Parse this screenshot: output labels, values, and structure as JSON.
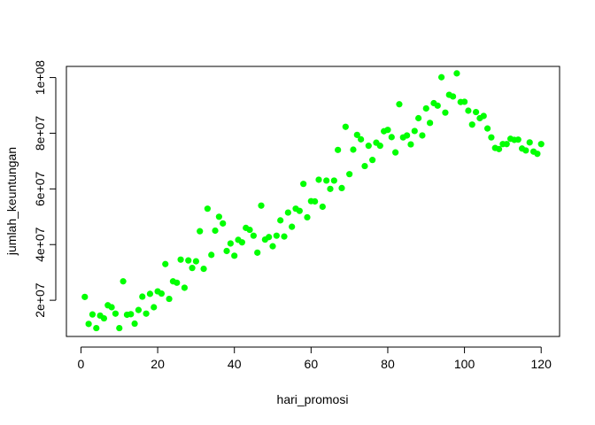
{
  "chart_data": {
    "type": "scatter",
    "title": "",
    "xlabel": "hari_promosi",
    "ylabel": "jumlah_keuntungan",
    "xlim": [
      -3.8,
      124.8
    ],
    "ylim": [
      7000000,
      104000000
    ],
    "xticks": [
      0,
      20,
      40,
      60,
      80,
      100,
      120
    ],
    "xtick_labels": [
      "0",
      "20",
      "40",
      "60",
      "80",
      "100",
      "120"
    ],
    "yticks": [
      20000000,
      40000000,
      60000000,
      80000000,
      100000000
    ],
    "ytick_labels": [
      "2e+07",
      "4e+07",
      "6e+07",
      "8e+07",
      "1e+08"
    ],
    "grid": false,
    "point_color": "#00FF00",
    "series": [
      {
        "x": [
          1,
          2,
          3,
          4,
          5,
          6,
          7,
          8,
          9,
          10,
          11,
          12,
          13,
          14,
          15,
          16,
          17,
          18,
          19,
          20,
          21,
          22,
          23,
          24,
          25,
          26,
          27,
          28,
          29,
          30,
          31,
          32,
          33,
          34,
          35,
          36,
          37,
          38,
          39,
          40,
          41,
          42,
          43,
          44,
          45,
          46,
          47,
          48,
          49,
          50,
          51,
          52,
          53,
          54,
          55,
          56,
          57,
          58,
          59,
          60,
          61,
          62,
          63,
          64,
          65,
          66,
          67,
          68,
          69,
          70,
          71,
          72,
          73,
          74,
          75,
          76,
          77,
          78,
          79,
          80,
          81,
          82,
          83,
          84,
          85,
          86,
          87,
          88,
          89,
          90,
          91,
          92,
          93,
          94,
          95,
          96,
          97,
          98,
          99,
          100,
          101,
          102,
          103,
          104,
          105,
          106,
          107,
          108,
          109,
          110,
          111,
          112,
          113,
          114,
          115,
          116,
          117,
          118,
          119,
          120
        ],
        "y": [
          21200000,
          11500000,
          14900000,
          10000000,
          14500000,
          13500000,
          18200000,
          17500000,
          15200000,
          10000000,
          26800000,
          14800000,
          15000000,
          11600000,
          16500000,
          21300000,
          15200000,
          22300000,
          17500000,
          23200000,
          22400000,
          33000000,
          20500000,
          26800000,
          26300000,
          34600000,
          24500000,
          34300000,
          31600000,
          34000000,
          44800000,
          31300000,
          52900000,
          36300000,
          45000000,
          50000000,
          47600000,
          37700000,
          40400000,
          36000000,
          41700000,
          40800000,
          46000000,
          45300000,
          43200000,
          37100000,
          54000000,
          41800000,
          42700000,
          39400000,
          43200000,
          48700000,
          42900000,
          51500000,
          46400000,
          52900000,
          52100000,
          61800000,
          49800000,
          55600000,
          55500000,
          63300000,
          53600000,
          63000000,
          60000000,
          63000000,
          74000000,
          60300000,
          82300000,
          65300000,
          74100000,
          79400000,
          77800000,
          68200000,
          75500000,
          70400000,
          76600000,
          75500000,
          80700000,
          81200000,
          78600000,
          73100000,
          90400000,
          78500000,
          79200000,
          76000000,
          80800000,
          85400000,
          79200000,
          88900000,
          83700000,
          90800000,
          89900000,
          100100000,
          87400000,
          93800000,
          93200000,
          101500000,
          91200000,
          91300000,
          88100000,
          83100000,
          87600000,
          85400000,
          86200000,
          81700000,
          78500000,
          74700000,
          74300000,
          76100000,
          76100000,
          78000000,
          77600000,
          77700000,
          74500000,
          73800000,
          76700000,
          73400000,
          72600000,
          76100000
        ]
      }
    ]
  }
}
